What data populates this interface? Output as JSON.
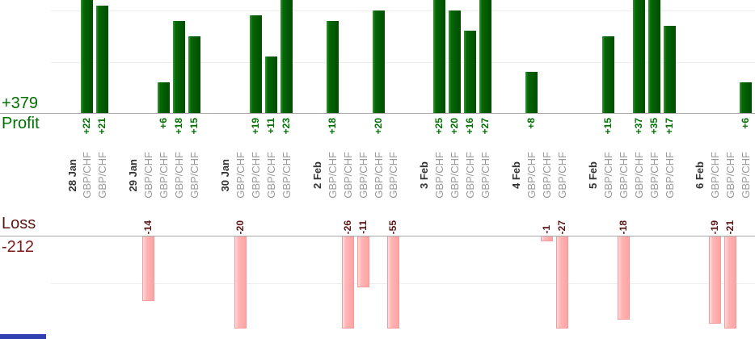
{
  "chart_data": {
    "type": "bar",
    "title": "",
    "description": "Per-trade profit/loss bar chart grouped by day; profit bars (green) in upper panel, loss bars (pink) in lower panel, one bar per trade, x labels rotated vertically",
    "profit": {
      "label": "Profit",
      "total": "+379",
      "axis": {
        "baseline": 0,
        "visible_max": 22,
        "gridline_step": 10,
        "gridlines_visible": [
          10,
          20
        ],
        "bars_clipped_above": 22
      }
    },
    "loss": {
      "label": "Loss",
      "total": "-212",
      "axis": {
        "baseline": 0,
        "visible_min": -20,
        "gridline_step": 10,
        "gridlines_visible": [
          -10
        ],
        "bars_clipped_below": -20
      }
    },
    "groups": [
      {
        "date": "28 Jan",
        "trades": [
          {
            "pair": "GBP/CHF",
            "value": 22
          },
          {
            "pair": "GBP/CHF",
            "value": 21
          }
        ]
      },
      {
        "date": "29 Jan",
        "trades": [
          {
            "pair": "GBP/CHF",
            "value": -14
          },
          {
            "pair": "GBP/CHF",
            "value": 6
          },
          {
            "pair": "GBP/CHF",
            "value": 18
          },
          {
            "pair": "GBP/CHF",
            "value": 15
          }
        ]
      },
      {
        "date": "30 Jan",
        "trades": [
          {
            "pair": "GBP/CHF",
            "value": -20
          },
          {
            "pair": "GBP/CHF",
            "value": 19
          },
          {
            "pair": "GBP/CHF",
            "value": 11
          },
          {
            "pair": "GBP/CHF",
            "value": 23
          }
        ]
      },
      {
        "date": "2 Feb",
        "trades": [
          {
            "pair": "GBP/CHF",
            "value": 18
          },
          {
            "pair": "GBP/CHF",
            "value": -26
          },
          {
            "pair": "GBP/CHF",
            "value": -11
          },
          {
            "pair": "GBP/CHF",
            "value": 20
          },
          {
            "pair": "GBP/CHF",
            "value": -55
          }
        ]
      },
      {
        "date": "3 Feb",
        "trades": [
          {
            "pair": "GBP/CHF",
            "value": 25
          },
          {
            "pair": "GBP/CHF",
            "value": 20
          },
          {
            "pair": "GBP/CHF",
            "value": 16
          },
          {
            "pair": "GBP/CHF",
            "value": 27
          }
        ]
      },
      {
        "date": "4 Feb",
        "trades": [
          {
            "pair": "GBP/CHF",
            "value": 8
          },
          {
            "pair": "GBP/CHF",
            "value": -1
          },
          {
            "pair": "GBP/CHF",
            "value": -27
          }
        ]
      },
      {
        "date": "5 Feb",
        "trades": [
          {
            "pair": "GBP/CHF",
            "value": 15
          },
          {
            "pair": "GBP/CHF",
            "value": -18
          },
          {
            "pair": "GBP/CHF",
            "value": 37
          },
          {
            "pair": "GBP/CHF",
            "value": 35
          },
          {
            "pair": "GBP/CHF",
            "value": 17
          }
        ]
      },
      {
        "date": "6 Feb",
        "trades": [
          {
            "pair": "GBP/CHF",
            "value": -19
          },
          {
            "pair": "GBP/CHF",
            "value": -21
          },
          {
            "pair": "GBP/CHF",
            "value": 6
          }
        ]
      }
    ]
  },
  "colors": {
    "profit_bar": "#066106",
    "loss_bar": "#ffb3b3",
    "loss_bar_border": "#f09c9c",
    "profit_text": "#007000",
    "loss_text": "#5c1616",
    "loss_total_text": "#7d1b1b",
    "date_text": "#333333",
    "pair_text": "#999999",
    "baseline": "#a8a8a8",
    "gridline": "#ededed",
    "bottom_left_strip": "#3140b0"
  }
}
